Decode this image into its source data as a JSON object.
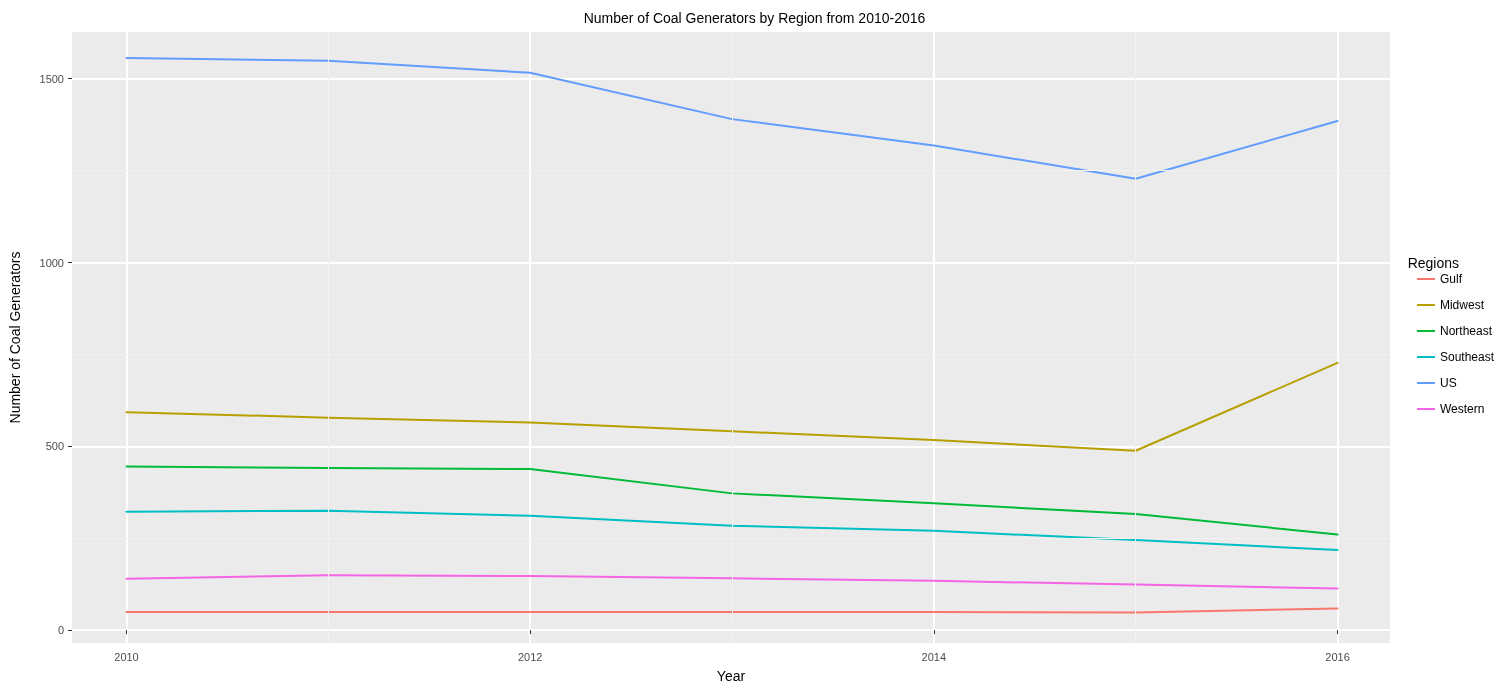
{
  "chart_data": {
    "type": "line",
    "title": "Number of Coal Generators by Region from 2010-2016",
    "xlabel": "Year",
    "ylabel": "Number of Coal Generators",
    "legend_title": "Regions",
    "x": [
      2010,
      2011,
      2012,
      2013,
      2014,
      2015,
      2016
    ],
    "series": [
      {
        "name": "Gulf",
        "color": "#f8766d",
        "values": [
          49,
          49,
          49,
          49,
          49,
          48,
          59
        ]
      },
      {
        "name": "Midwest",
        "color": "#b79f00",
        "values": [
          593,
          578,
          565,
          541,
          517,
          488,
          727
        ]
      },
      {
        "name": "Northeast",
        "color": "#00ba38",
        "values": [
          445,
          441,
          438,
          372,
          345,
          316,
          260
        ]
      },
      {
        "name": "Southeast",
        "color": "#00bfc4",
        "values": [
          322,
          325,
          311,
          284,
          270,
          245,
          218
        ]
      },
      {
        "name": "US",
        "color": "#619cff",
        "values": [
          1556,
          1549,
          1516,
          1390,
          1318,
          1228,
          1385
        ]
      },
      {
        "name": "Western",
        "color": "#f564e3",
        "values": [
          140,
          149,
          147,
          141,
          134,
          124,
          113
        ]
      }
    ],
    "xlim": [
      2009.73,
      2016.26
    ],
    "xticks": [
      2010,
      2012,
      2014,
      2016
    ],
    "ylim": [
      -35,
      1627
    ],
    "yticks": [
      0,
      500,
      1000,
      1500
    ],
    "grid": true,
    "legend": "right",
    "marker": "none",
    "line_style": "solid"
  }
}
